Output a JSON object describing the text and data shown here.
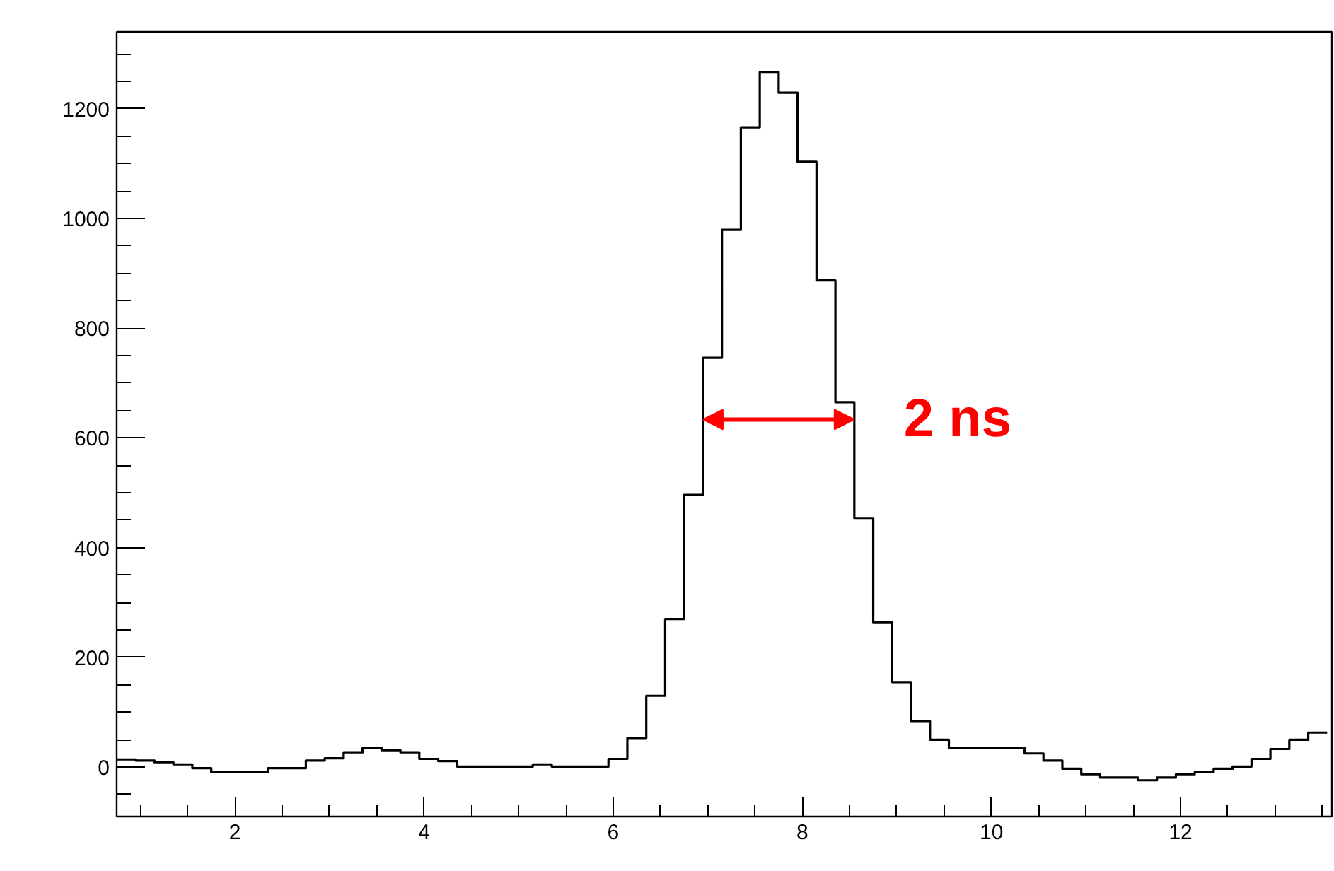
{
  "chart_data": {
    "type": "histogram",
    "bins": [
      0.75,
      0.95,
      1.15,
      1.35,
      1.55,
      1.75,
      1.95,
      2.15,
      2.35,
      2.55,
      2.75,
      2.95,
      3.15,
      3.35,
      3.55,
      3.75,
      3.95,
      4.15,
      4.35,
      4.55,
      4.75,
      4.95,
      5.15,
      5.35,
      5.55,
      5.75,
      5.95,
      6.15,
      6.35,
      6.55,
      6.75,
      6.95,
      7.15,
      7.35,
      7.55,
      7.75,
      7.95,
      8.15,
      8.35,
      8.55,
      8.75,
      8.95,
      9.15,
      9.35,
      9.55,
      9.75,
      9.95,
      10.15,
      10.35,
      10.55,
      10.75,
      10.95,
      11.15,
      11.35,
      11.55,
      11.75,
      11.95,
      12.15,
      12.35,
      12.55,
      12.75,
      12.95,
      13.15,
      13.35,
      13.55
    ],
    "values": [
      14,
      12,
      9,
      5,
      -2,
      -9,
      -9,
      -9,
      -2,
      -2,
      12,
      16,
      27,
      35,
      31,
      27,
      15,
      11,
      1,
      1,
      1,
      1,
      5,
      1,
      1,
      1,
      15,
      53,
      130,
      270,
      496,
      746,
      979,
      1166,
      1267,
      1229,
      1103,
      887,
      665,
      454,
      264,
      155,
      84,
      50,
      35,
      35,
      35,
      35,
      25,
      12,
      -3,
      -13,
      -19,
      -19,
      -24,
      -19,
      -13,
      -9,
      -3,
      1,
      15,
      33,
      50,
      63
    ],
    "color": "#000000",
    "xlim": [
      0.75,
      13.6
    ],
    "ylim": [
      -90,
      1340
    ],
    "xticks": [
      2,
      4,
      6,
      8,
      10,
      12
    ],
    "yticks": [
      0,
      200,
      400,
      600,
      800,
      1000,
      1200
    ],
    "grid": false,
    "annotations": [
      "2 ns"
    ]
  }
}
